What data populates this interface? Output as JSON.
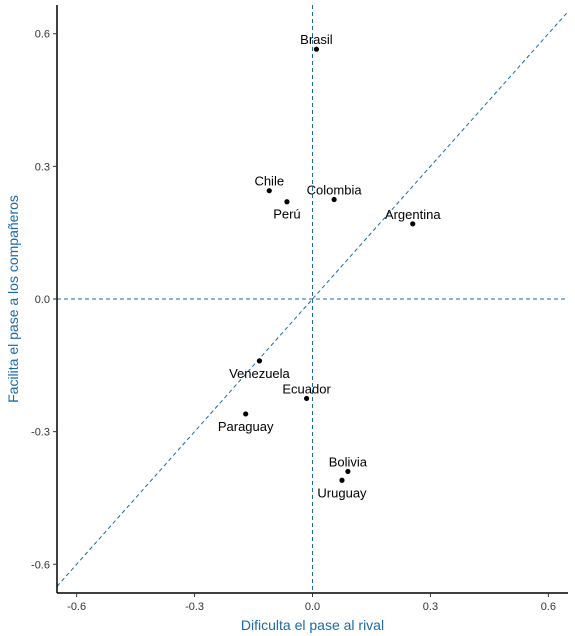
{
  "chart_data": {
    "type": "scatter",
    "title": "",
    "xlabel": "Dificulta el pase al rival",
    "ylabel": "Facilita el pase a los compañeros",
    "xlim": [
      -0.65,
      0.65
    ],
    "ylim": [
      -0.665,
      0.665
    ],
    "xticks": [
      -0.6,
      -0.3,
      0.0,
      0.3,
      0.6
    ],
    "yticks": [
      -0.6,
      -0.3,
      0.0,
      0.3,
      0.6
    ],
    "xtick_labels": [
      "-0.6",
      "-0.3",
      "0.0",
      "0.3",
      "0.6"
    ],
    "ytick_labels": [
      "-0.6",
      "-0.3",
      "0.0",
      "0.3",
      "0.6"
    ],
    "grid": false,
    "reference_lines": {
      "vertical_x": 0,
      "horizontal_y": 0,
      "diagonal": "y = x",
      "style": "dashed",
      "color": "#1a6aa6"
    },
    "axis_title_color": "#1a6aa6",
    "point_color": "#000000",
    "points": [
      {
        "label": "Brasil",
        "x": 0.01,
        "y": 0.565,
        "anchor": "above"
      },
      {
        "label": "Chile",
        "x": -0.11,
        "y": 0.245,
        "anchor": "above"
      },
      {
        "label": "Colombia",
        "x": 0.055,
        "y": 0.225,
        "anchor": "above"
      },
      {
        "label": "Perú",
        "x": -0.065,
        "y": 0.22,
        "anchor": "below"
      },
      {
        "label": "Argentina",
        "x": 0.255,
        "y": 0.17,
        "anchor": "above"
      },
      {
        "label": "Venezuela",
        "x": -0.135,
        "y": -0.14,
        "anchor": "below"
      },
      {
        "label": "Ecuador",
        "x": -0.015,
        "y": -0.225,
        "anchor": "above"
      },
      {
        "label": "Paraguay",
        "x": -0.17,
        "y": -0.26,
        "anchor": "below"
      },
      {
        "label": "Bolivia",
        "x": 0.09,
        "y": -0.39,
        "anchor": "above"
      },
      {
        "label": "Uruguay",
        "x": 0.075,
        "y": -0.41,
        "anchor": "below"
      }
    ]
  }
}
